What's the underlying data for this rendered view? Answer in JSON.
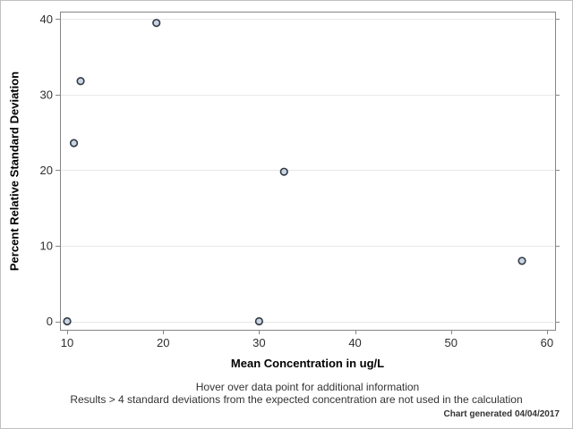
{
  "chart_data": {
    "type": "scatter",
    "title": "",
    "xlabel": "Mean Concentration in ug/L",
    "ylabel": "Percent Relative Standard Deviation",
    "x_ticks": [
      10,
      20,
      30,
      40,
      50,
      60
    ],
    "y_ticks": [
      0,
      10,
      20,
      30,
      40
    ],
    "xlim": [
      9.25,
      60.85
    ],
    "ylim": [
      -1.12,
      41.0
    ],
    "grid": "horizontal-only",
    "legend": "none",
    "points": [
      {
        "x": 10.0,
        "y": 0.0
      },
      {
        "x": 10.7,
        "y": 23.6
      },
      {
        "x": 11.4,
        "y": 31.8
      },
      {
        "x": 19.3,
        "y": 39.5
      },
      {
        "x": 30.0,
        "y": 0.0
      },
      {
        "x": 32.6,
        "y": 19.8
      },
      {
        "x": 57.4,
        "y": 8.0
      }
    ]
  },
  "footer": {
    "line1": "Hover over data point for additional information",
    "line2": "Results > 4 standard deviations from the expected concentration are not used in the calculation",
    "generated": "Chart generated 04/04/2017"
  },
  "colors": {
    "marker_fill": "#c9d5e3",
    "marker_stroke": "#333a45",
    "grid": "#e8e8e8",
    "axis": "#868686",
    "tick_label": "#2e2e2e",
    "frame_border": "#c0c0c0"
  }
}
